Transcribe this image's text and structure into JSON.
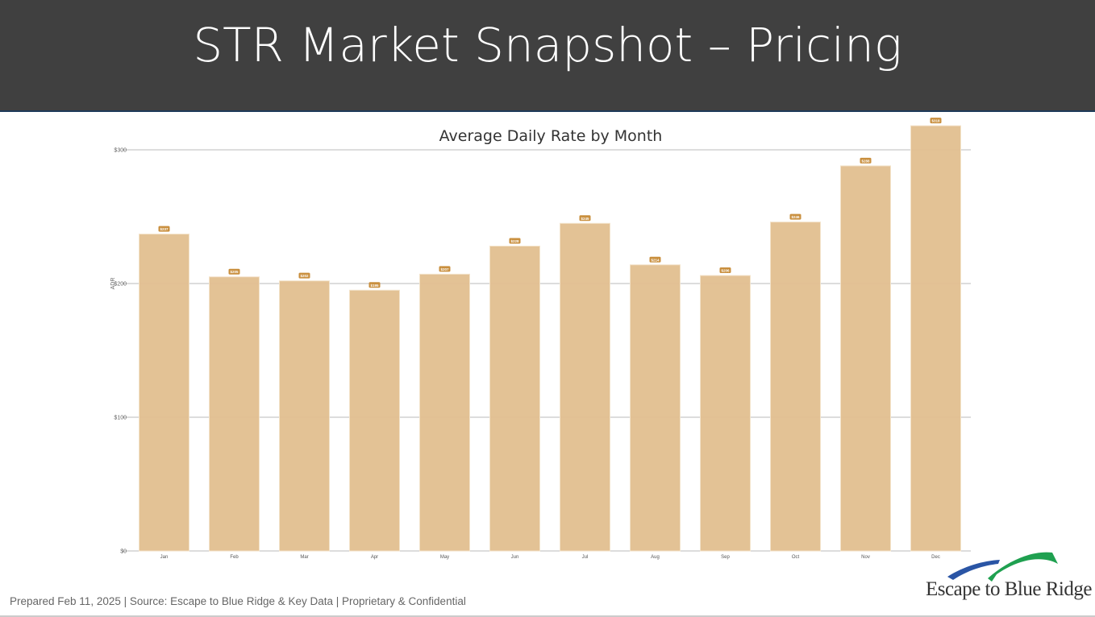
{
  "header": {
    "title": "STR Market Snapshot – Pricing"
  },
  "chart_data": {
    "type": "bar",
    "title": "Average Daily Rate by Month",
    "xlabel": "",
    "ylabel": "ADR",
    "categories": [
      "Jan",
      "Feb",
      "Mar",
      "Apr",
      "May",
      "Jun",
      "Jul",
      "Aug",
      "Sep",
      "Oct",
      "Nov",
      "Dec"
    ],
    "values": [
      237,
      205,
      202,
      195,
      207,
      228,
      245,
      214,
      206,
      246,
      288,
      318
    ],
    "data_labels": [
      "$237",
      "$205",
      "$202",
      "$195",
      "$207",
      "$228",
      "$245",
      "$214",
      "$206",
      "$246",
      "$288",
      "$318"
    ],
    "ylim": [
      0,
      300
    ],
    "yticks": [
      0,
      100,
      200,
      300
    ],
    "ytick_labels": [
      "$0",
      "$100",
      "$200",
      "$300"
    ],
    "grid": true,
    "bar_color": "#e2bf90",
    "label_color": "#c98f3e"
  },
  "footer": {
    "text": "Prepared Feb 11, 2025 | Source:  Escape to Blue Ridge & Key Data | Proprietary & Confidential"
  },
  "logo": {
    "text": "Escape to Blue Ridge"
  }
}
